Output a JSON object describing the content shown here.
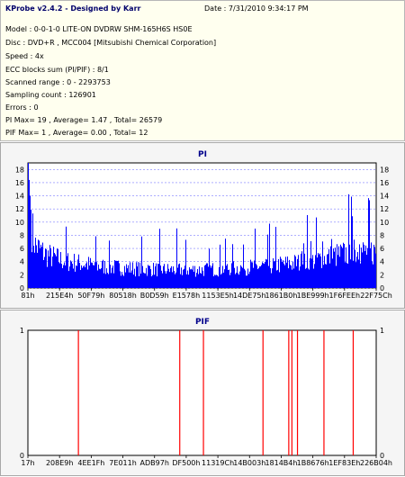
{
  "header": {
    "title": "KProbe v2.4.2 - Designed by Karr",
    "date": "Date : 7/31/2010 9:34:17 PM"
  },
  "info": {
    "model": "Model : 0-0-1-0 LITE-ON DVDRW SHM-165H6S HS0E",
    "disc": "Disc : DVD+R , MCC004 [Mitsubishi Chemical Corporation]",
    "speed": "Speed : 4x",
    "ecc": "ECC blocks sum (PI/PIF) : 8/1",
    "scanned": "Scanned range : 0 - 2293753",
    "sampling": "Sampling count : 126901",
    "errors": "Errors : 0",
    "pi_summary": "PI Max= 19 , Average= 1.47 , Total= 26579",
    "pif_summary": "PIF Max= 1 , Average= 0.00 , Total= 12"
  },
  "colors": {
    "info_bg": "#ffffef",
    "chart_bg": "#ffffff",
    "pi_fill": "#0000ff",
    "pif_line": "#ff0000",
    "title_color": "#00008b"
  },
  "chart_data": [
    {
      "type": "bar",
      "title": "PI",
      "ylim": [
        0,
        19
      ],
      "y_ticks": [
        0,
        2,
        4,
        6,
        8,
        10,
        12,
        14,
        16,
        18
      ],
      "x_tick_labels": [
        "81h",
        "215E4h",
        "50F79h",
        "80518h",
        "B0D59h",
        "E1578h",
        "1153E5h",
        "14DE75h",
        "1861B0h",
        "1BE999h",
        "1F6FEEh",
        "22F75Ch"
      ],
      "grid": true,
      "profile": [
        [
          0,
          19
        ],
        [
          0.004,
          15
        ],
        [
          0.01,
          10
        ],
        [
          0.02,
          7
        ],
        [
          0.05,
          5.5
        ],
        [
          0.1,
          4.5
        ],
        [
          0.2,
          3.6
        ],
        [
          0.3,
          3.2
        ],
        [
          0.4,
          3.0
        ],
        [
          0.5,
          3.0
        ],
        [
          0.6,
          3.3
        ],
        [
          0.7,
          3.7
        ],
        [
          0.8,
          4.3
        ],
        [
          0.88,
          5.3
        ],
        [
          0.94,
          6.0
        ],
        [
          1.0,
          6.0
        ]
      ]
    },
    {
      "type": "bar",
      "title": "PIF",
      "ylim": [
        0,
        1
      ],
      "y_ticks": [
        0,
        1
      ],
      "x_tick_labels": [
        "17h",
        "208E9h",
        "4EE1Fh",
        "7E011h",
        "ADB97h",
        "DF500h",
        "11319Ch",
        "14B003h",
        "1814B4h",
        "1B8676h",
        "1EF83Eh",
        "226B04h"
      ],
      "grid": true,
      "spikes_x_fraction": [
        0.145,
        0.436,
        0.504,
        0.675,
        0.749,
        0.758,
        0.774,
        0.85,
        0.934
      ],
      "values": [
        1,
        1,
        1,
        1,
        1,
        1,
        1,
        1,
        1
      ]
    }
  ]
}
